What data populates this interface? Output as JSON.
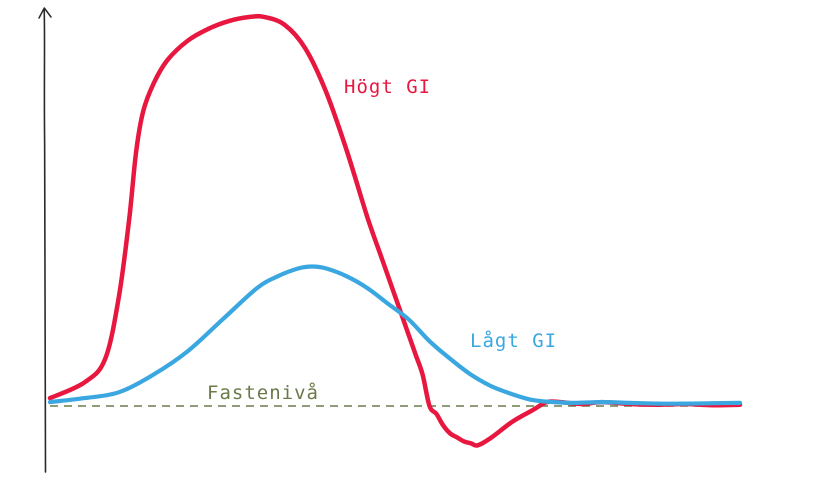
{
  "chart_data": {
    "type": "line",
    "title": "",
    "xlabel": "",
    "ylabel": "",
    "axes": {
      "y_arrow": true,
      "x_axis_drawn": false,
      "ticks": false,
      "grid": false
    },
    "ylim": [
      -10,
      100
    ],
    "xlim": [
      0,
      100
    ],
    "baseline": {
      "label": "Fastenivå",
      "value": 0,
      "style": "dashed",
      "color": "#6b7a4a"
    },
    "series": [
      {
        "name": "Högt GI",
        "color": "#e8173f",
        "x": [
          0,
          5,
          8,
          10,
          11.5,
          12.5,
          13.5,
          15,
          17,
          20,
          23,
          26,
          29,
          31,
          34,
          37,
          40,
          43,
          46,
          48,
          50,
          52,
          53,
          54,
          55,
          56,
          57,
          58,
          59,
          60,
          61,
          62,
          64,
          67,
          70,
          72,
          74,
          77,
          80,
          84,
          88,
          92,
          96,
          100
        ],
        "y": [
          2,
          6,
          12,
          28,
          48,
          65,
          75,
          82,
          88,
          93,
          96,
          98,
          99,
          99,
          97,
          91,
          80,
          65,
          48,
          38,
          28,
          18,
          13,
          8,
          0,
          -2,
          -5,
          -7,
          -8,
          -9,
          -9.5,
          -10,
          -8,
          -4,
          -1,
          1,
          1,
          0.5,
          1,
          0.5,
          0.3,
          0.5,
          0.2,
          0.3
        ]
      },
      {
        "name": "Lågt GI",
        "color": "#3aa7e0",
        "x": [
          0,
          5,
          10,
          15,
          20,
          25,
          30,
          33,
          36,
          38,
          40,
          43,
          46,
          49,
          52,
          55,
          58,
          61,
          64,
          67,
          70,
          73,
          76,
          80,
          84,
          88,
          92,
          96,
          100
        ],
        "y": [
          1,
          2,
          3.5,
          8,
          14,
          22,
          30,
          33,
          35,
          35.5,
          35,
          33,
          30,
          26,
          22,
          16.5,
          12,
          8,
          5,
          3,
          1.5,
          1,
          0.8,
          1,
          0.8,
          0.6,
          0.6,
          0.7,
          0.8
        ]
      }
    ]
  }
}
